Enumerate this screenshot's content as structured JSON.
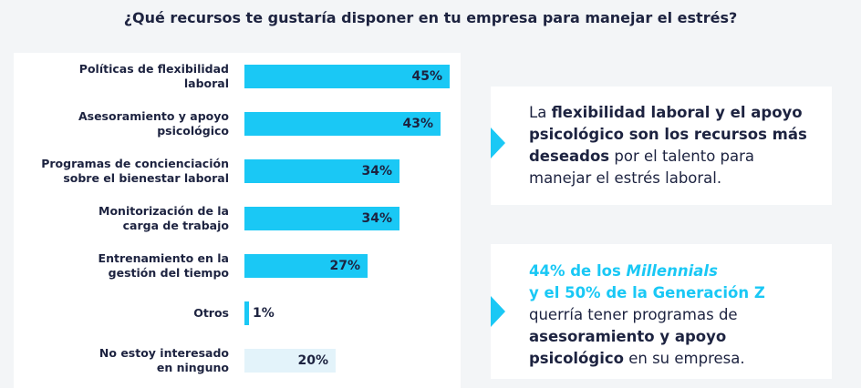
{
  "chart_data": {
    "type": "bar",
    "title": "¿Qué recursos te gustaría disponer en tu empresa para manejar el estrés?",
    "categories": [
      "Políticas de flexibilidad\nlaboral",
      "Asesoramiento y apoyo\npsicológico",
      "Programas de concienciación\nsobre el bienestar laboral",
      "Monitorización de la\ncarga de trabajo",
      "Entrenamiento en la\ngestión del tiempo",
      "Otros",
      "No estoy interesado\nen ninguno"
    ],
    "values": [
      45,
      43,
      34,
      34,
      27,
      1,
      20
    ],
    "value_labels": [
      "45%",
      "43%",
      "34%",
      "34%",
      "27%",
      "1%",
      "20%"
    ],
    "colors": [
      "#1ac8f5",
      "#1ac8f5",
      "#1ac8f5",
      "#1ac8f5",
      "#1ac8f5",
      "#1ac8f5",
      "#e3f3fa"
    ]
  },
  "callouts": [
    {
      "segments": [
        {
          "text": "La ",
          "style": "regular"
        },
        {
          "text": "flexibilidad laboral y el apoyo psicológico son los recursos más deseados",
          "style": "bold"
        },
        {
          "text": " por el talento para manejar el estrés laboral.",
          "style": "regular"
        }
      ]
    },
    {
      "segments": [
        {
          "text": "44% de los ",
          "style": "accent-bold"
        },
        {
          "text": "Millennials",
          "style": "accent-bold-italic"
        },
        {
          "text": "\ny el 50% de la Generación Z",
          "style": "accent-bold"
        },
        {
          "text": "\nquerría tener programas de\n",
          "style": "regular"
        },
        {
          "text": "asesoramiento y apoyo psicológico",
          "style": "bold"
        },
        {
          "text": " en su empresa.",
          "style": "regular"
        }
      ]
    }
  ]
}
